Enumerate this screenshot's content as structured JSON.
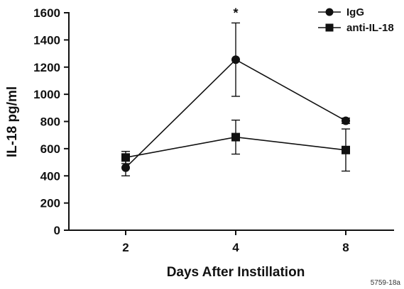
{
  "chart_data": {
    "type": "line",
    "title": "",
    "xlabel": "Days After Instillation",
    "ylabel": "IL-18 pg/ml",
    "categories": [
      "2",
      "4",
      "8"
    ],
    "ylim": [
      0,
      1600
    ],
    "yticks": [
      0,
      200,
      400,
      600,
      800,
      1000,
      1200,
      1400,
      1600
    ],
    "grid": false,
    "legend_position": "top-right",
    "series": [
      {
        "name": "IgG",
        "marker": "circle",
        "color": "#111111",
        "values": [
          460,
          1255,
          805
        ],
        "errors": [
          60,
          270,
          20
        ]
      },
      {
        "name": "anti-IL-18",
        "marker": "square",
        "color": "#111111",
        "values": [
          535,
          685,
          590
        ],
        "errors": [
          45,
          125,
          155
        ]
      }
    ],
    "annotations": [
      {
        "text": "*",
        "category": "4",
        "series": "IgG"
      }
    ]
  },
  "figure_id": "5759-18a"
}
